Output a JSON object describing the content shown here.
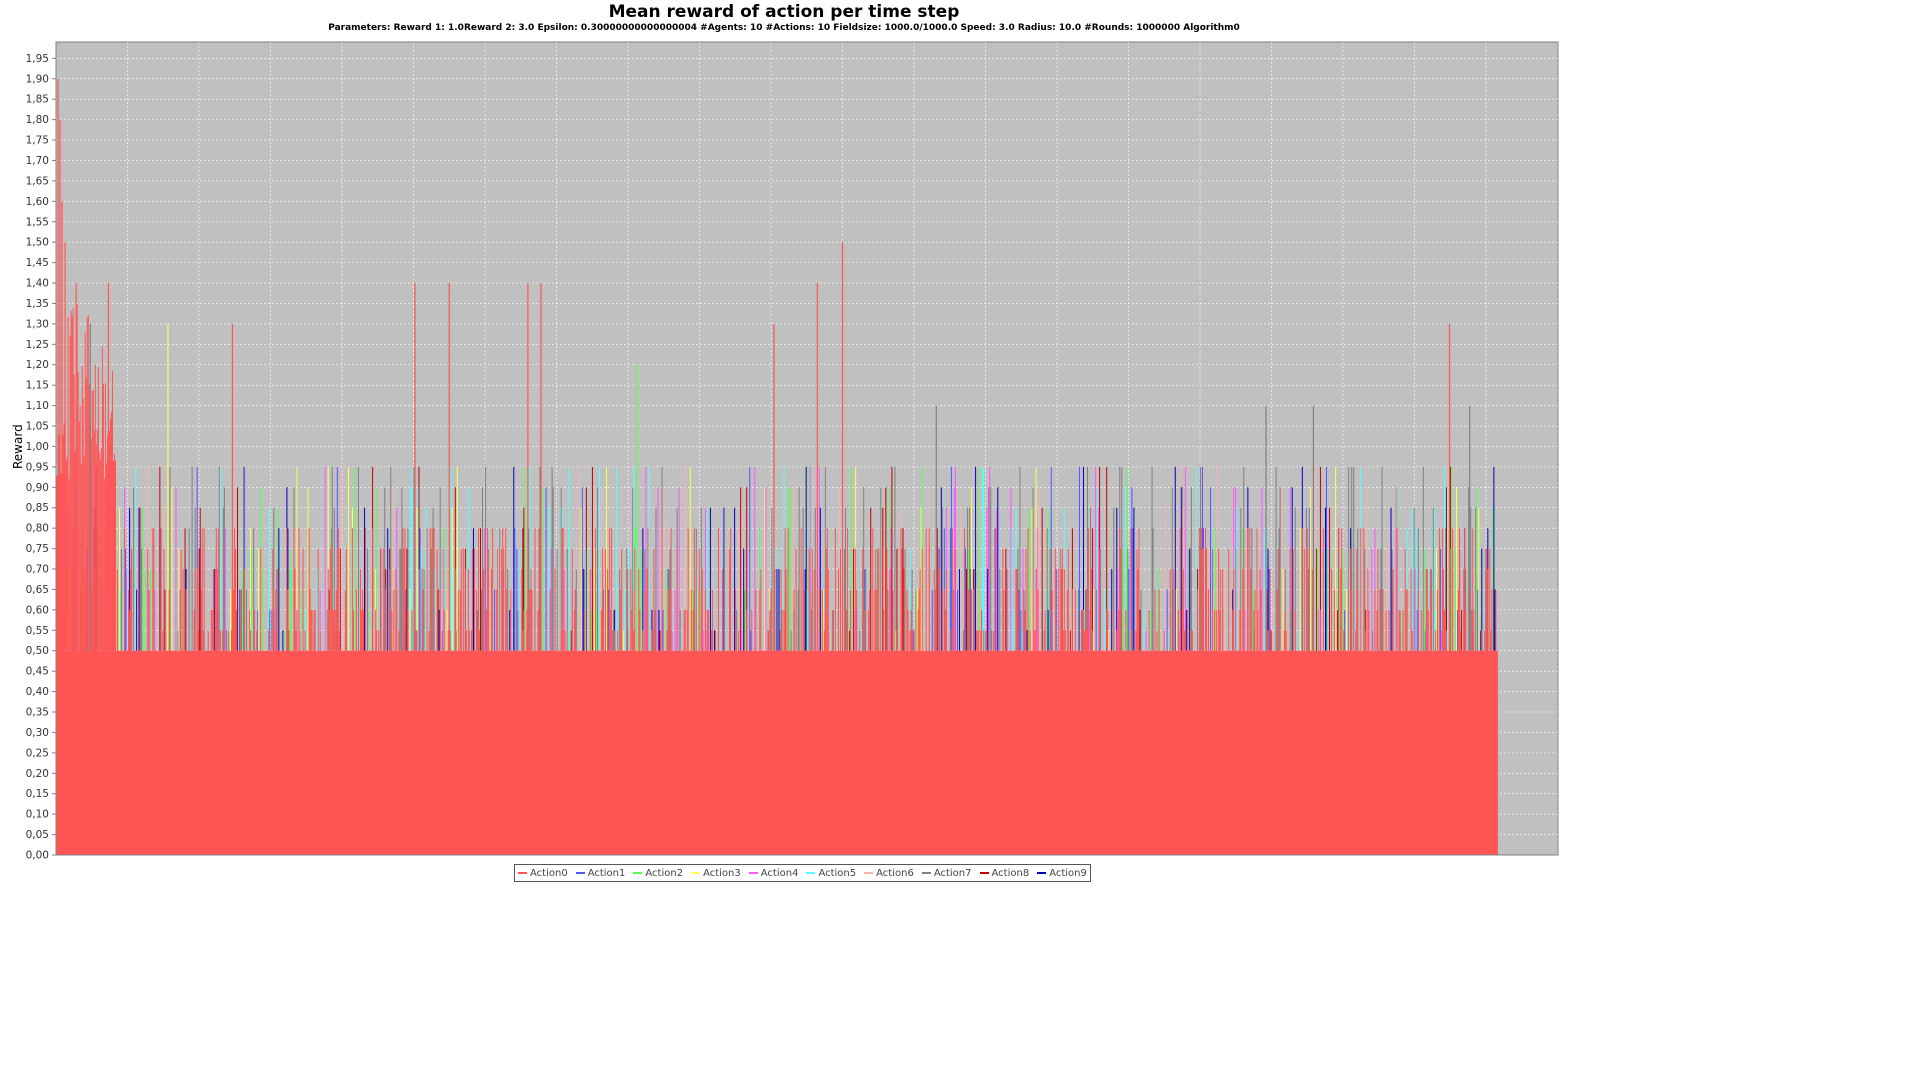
{
  "chart_data": {
    "type": "bar",
    "title": "Mean reward of action per time step",
    "subtitle": "Parameters: Reward 1: 1.0Reward 2: 3.0 Epsilon: 0.30000000000000004 #Agents: 10 #Actions: 10 Fieldsize: 1000.0/1000.0 Speed: 3.0 Radius: 10.0 #Rounds: 1000000 Algorithm0",
    "xlabel": "",
    "ylabel": "Reward",
    "ylim": [
      0,
      1.99
    ],
    "y_ticks": [
      "0,00",
      "0,05",
      "0,10",
      "0,15",
      "0,20",
      "0,25",
      "0,30",
      "0,35",
      "0,40",
      "0,45",
      "0,50",
      "0,55",
      "0,60",
      "0,65",
      "0,70",
      "0,75",
      "0,80",
      "0,85",
      "0,90",
      "0,95",
      "1,00",
      "1,05",
      "1,10",
      "1,15",
      "1,20",
      "1,25",
      "1,30",
      "1,35",
      "1,40",
      "1,45",
      "1,50",
      "1,55",
      "1,60",
      "1,65",
      "1,70",
      "1,75",
      "1,80",
      "1,85",
      "1,90",
      "1,95"
    ],
    "grid": true,
    "legend_position": "bottom",
    "series": [
      {
        "name": "Action0",
        "color": "#ff5555"
      },
      {
        "name": "Action1",
        "color": "#5555ff"
      },
      {
        "name": "Action2",
        "color": "#55ff55"
      },
      {
        "name": "Action3",
        "color": "#ffff55"
      },
      {
        "name": "Action4",
        "color": "#ff55ff"
      },
      {
        "name": "Action5",
        "color": "#55ffff"
      },
      {
        "name": "Action6",
        "color": "#ffafaf"
      },
      {
        "name": "Action7",
        "color": "#808080"
      },
      {
        "name": "Action8",
        "color": "#c00000"
      },
      {
        "name": "Action9",
        "color": "#0000c0"
      }
    ],
    "x_fraction_with_data": 0.96,
    "baseline_fill_level": {
      "series": "Action0",
      "value": 0.5
    },
    "peaks": [
      {
        "series": "Action0",
        "x_index": 2,
        "value": 1.9
      },
      {
        "series": "Action0",
        "x_index": 4,
        "value": 1.8
      },
      {
        "series": "Action0",
        "x_index": 6,
        "value": 1.6
      },
      {
        "series": "Action0",
        "x_index": 9,
        "value": 1.5
      },
      {
        "series": "Action0",
        "x_index": 20,
        "value": 1.4
      },
      {
        "series": "Action0",
        "x_index": 52,
        "value": 1.4
      },
      {
        "series": "Action7",
        "x_index": 34,
        "value": 1.3
      },
      {
        "series": "Action3",
        "x_index": 111,
        "value": 1.3
      },
      {
        "series": "Action0",
        "x_index": 175,
        "value": 1.3
      },
      {
        "series": "Action0",
        "x_index": 356,
        "value": 1.4
      },
      {
        "series": "Action0",
        "x_index": 390,
        "value": 1.4
      },
      {
        "series": "Action0",
        "x_index": 468,
        "value": 1.4
      },
      {
        "series": "Action0",
        "x_index": 481,
        "value": 1.4
      },
      {
        "series": "Action2",
        "x_index": 576,
        "value": 1.2
      },
      {
        "series": "Action0",
        "x_index": 712,
        "value": 1.3
      },
      {
        "series": "Action0",
        "x_index": 755,
        "value": 1.4
      },
      {
        "series": "Action0",
        "x_index": 780,
        "value": 1.5
      },
      {
        "series": "Action7",
        "x_index": 873,
        "value": 1.1
      },
      {
        "series": "Action7",
        "x_index": 1200,
        "value": 1.1
      },
      {
        "series": "Action7",
        "x_index": 1247,
        "value": 1.1
      },
      {
        "series": "Action0",
        "x_index": 1382,
        "value": 1.3
      },
      {
        "series": "Action7",
        "x_index": 1402,
        "value": 1.1
      }
    ]
  }
}
